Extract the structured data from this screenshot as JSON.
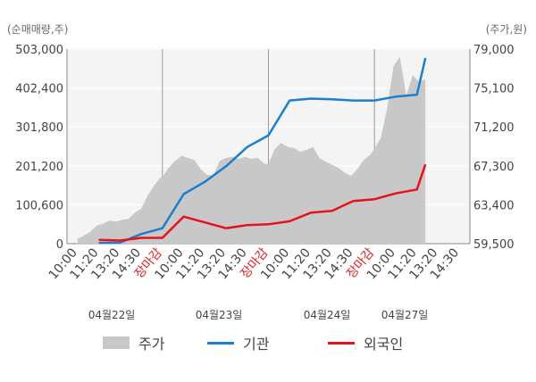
{
  "chart_data": {
    "type": "line",
    "left_axis_unit": "(순매매량,주)",
    "right_axis_unit": "(주가,원)",
    "left_ticks": [
      "0",
      "100,600",
      "201,200",
      "301,800",
      "402,400",
      "503,000"
    ],
    "left_range": [
      0,
      503000
    ],
    "right_ticks": [
      "59,500",
      "63,400",
      "67,300",
      "71,200",
      "75,100",
      "79,000"
    ],
    "right_range": [
      59500,
      79000
    ],
    "x_ticks": [
      "10:00",
      "11:20",
      "13:20",
      "14:30",
      "장마감",
      "10:00",
      "11:20",
      "13:20",
      "14:30",
      "장마감",
      "10:00",
      "11:20",
      "13:20",
      "14:30",
      "장마감",
      "10:00",
      "11:20",
      "13:20",
      "14:30"
    ],
    "x_tick_colors": [
      "#444",
      "#444",
      "#444",
      "#444",
      "#e02020",
      "#444",
      "#444",
      "#444",
      "#444",
      "#e02020",
      "#444",
      "#444",
      "#444",
      "#444",
      "#e02020",
      "#444",
      "#444",
      "#444",
      "#444"
    ],
    "day_labels": [
      "04월22일",
      "04월23일",
      "04월24일",
      "04월27일"
    ],
    "legend": [
      {
        "label": "주가",
        "color": "#c8c8c8",
        "kind": "area"
      },
      {
        "label": "기관",
        "color": "#1a7fcf",
        "kind": "line"
      },
      {
        "label": "외국인",
        "color": "#e8101a",
        "kind": "line"
      }
    ],
    "price_series": {
      "name": "주가",
      "color": "#c8c8c8",
      "x": [
        0,
        0.3,
        0.6,
        0.9,
        1.2,
        1.5,
        1.8,
        2.1,
        2.4,
        2.7,
        3.0,
        3.3,
        3.6,
        3.9,
        4.0,
        4.3,
        4.6,
        4.9,
        5.2,
        5.5,
        5.8,
        6.1,
        6.4,
        6.7,
        7.0,
        7.3,
        7.6,
        7.9,
        8.2,
        8.5,
        8.8,
        9.0,
        9.3,
        9.6,
        9.9,
        10.2,
        10.5,
        10.8,
        11.1,
        11.4,
        11.7,
        12.0,
        12.3,
        12.6,
        12.9,
        13.2,
        13.5,
        13.8,
        14.0,
        14.3,
        14.6,
        14.9,
        15.2,
        15.5,
        15.8,
        16.1,
        16.4
      ],
      "values": [
        60000,
        60300,
        60700,
        61300,
        61500,
        61800,
        61700,
        61900,
        62000,
        62600,
        63000,
        64300,
        65300,
        66100,
        66200,
        67100,
        67800,
        68300,
        68100,
        67900,
        67000,
        66400,
        66300,
        67800,
        68100,
        68200,
        68000,
        68200,
        68000,
        68100,
        67500,
        67500,
        69000,
        69600,
        69200,
        69100,
        68700,
        68900,
        69200,
        68100,
        67700,
        67400,
        67100,
        66600,
        66300,
        67000,
        67900,
        68400,
        69000,
        70100,
        73100,
        77300,
        78200,
        74300,
        76400,
        75700,
        76000
      ]
    },
    "series": [
      {
        "name": "기관",
        "color": "#1a7fcf",
        "x": [
          1,
          2,
          3,
          4,
          5,
          6,
          7,
          8,
          9,
          10,
          11,
          12,
          13,
          14,
          15,
          16,
          16.4
        ],
        "values": [
          1500,
          2500,
          25000,
          40000,
          128000,
          160000,
          200000,
          250000,
          280000,
          370000,
          375000,
          373000,
          370000,
          370000,
          380000,
          385000,
          480000
        ]
      },
      {
        "name": "외국인",
        "color": "#e8101a",
        "x": [
          1,
          2,
          3,
          4,
          5,
          6,
          7,
          8,
          9,
          10,
          11,
          12,
          13,
          14,
          15,
          16,
          16.4
        ],
        "values": [
          10000,
          8000,
          15000,
          15000,
          70000,
          55000,
          40000,
          48000,
          50000,
          58000,
          80000,
          85000,
          110000,
          115000,
          130000,
          140000,
          205000
        ]
      }
    ]
  }
}
